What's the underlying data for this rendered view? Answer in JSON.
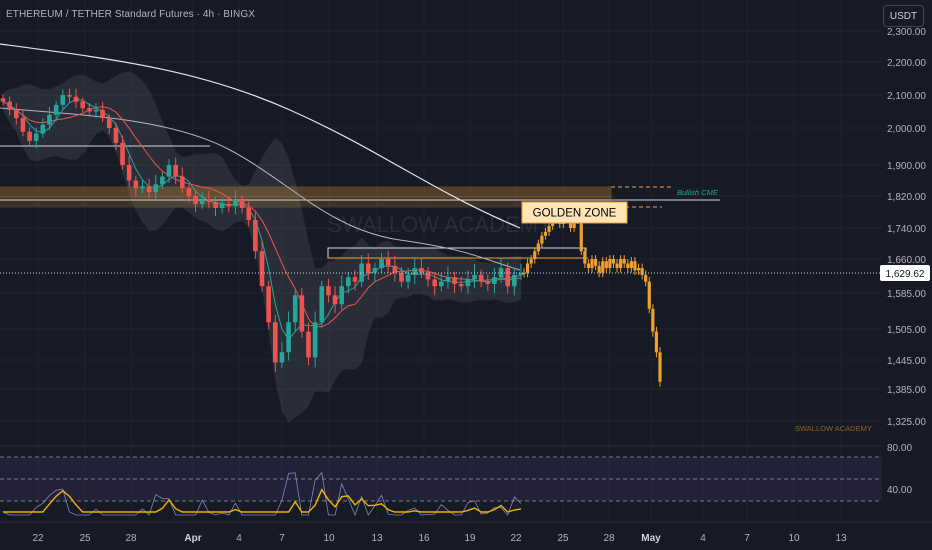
{
  "header": {
    "title": "ETHEREUM / TETHER Standard Futures · 4h · BINGX",
    "currency_button": "USDT"
  },
  "colors": {
    "background": "#161a25",
    "bull": "#26a69a",
    "bear": "#ef5350",
    "projection": "#f0a030",
    "zone": "#f0a030",
    "text": "#b2b5be"
  },
  "chart_data": {
    "type": "candlestick",
    "y_ticks": [
      "2,300.00",
      "2,200.00",
      "2,100.00",
      "2,000.00",
      "1,900.00",
      "1,820.00",
      "1,740.00",
      "1,660.00",
      "1,585.00",
      "1,505.00",
      "1,445.00",
      "1,385.00",
      "1,325.00"
    ],
    "x_ticks": [
      "22",
      "25",
      "28",
      "Apr",
      "4",
      "7",
      "10",
      "13",
      "16",
      "19",
      "22",
      "25",
      "28",
      "May",
      "4",
      "7",
      "10",
      "13"
    ],
    "current_price": "1,629.62",
    "candles": [
      2080,
      2055,
      2030,
      1990,
      1965,
      1985,
      2010,
      2040,
      2070,
      2100,
      2095,
      2080,
      2060,
      2050,
      2055,
      2030,
      2000,
      1960,
      1900,
      1860,
      1840,
      1845,
      1830,
      1850,
      1870,
      1900,
      1870,
      1840,
      1820,
      1800,
      1810,
      1805,
      1790,
      1800,
      1795,
      1810,
      1790,
      1760,
      1680,
      1600,
      1520,
      1440,
      1460,
      1520,
      1580,
      1500,
      1450,
      1520,
      1600,
      1580,
      1560,
      1600,
      1620,
      1610,
      1650,
      1630,
      1640,
      1660,
      1645,
      1630,
      1610,
      1625,
      1640,
      1630,
      1615,
      1600,
      1610,
      1620,
      1605,
      1600,
      1615,
      1625,
      1610,
      1605,
      1620,
      1640,
      1600,
      1625,
      1629.62
    ],
    "projection": [
      1629.62,
      1650,
      1660,
      1680,
      1700,
      1720,
      1730,
      1745,
      1760,
      1770,
      1750,
      1770,
      1790,
      1740,
      1760,
      1790,
      1680,
      1650,
      1640,
      1660,
      1645,
      1630,
      1655,
      1640,
      1660,
      1650,
      1640,
      1660,
      1650,
      1640,
      1655,
      1635,
      1640,
      1625,
      1610,
      1550,
      1500,
      1460,
      1400
    ],
    "rsi_ticks": [
      "80.00",
      "40.00"
    ],
    "annotations": {
      "golden_zone": "GOLDEN ZONE",
      "bullish_cme": "Bullish CME",
      "watermark": "SWALLOW ACADEMY",
      "corner_watermark": "SWALLOW ACADEMY"
    }
  }
}
